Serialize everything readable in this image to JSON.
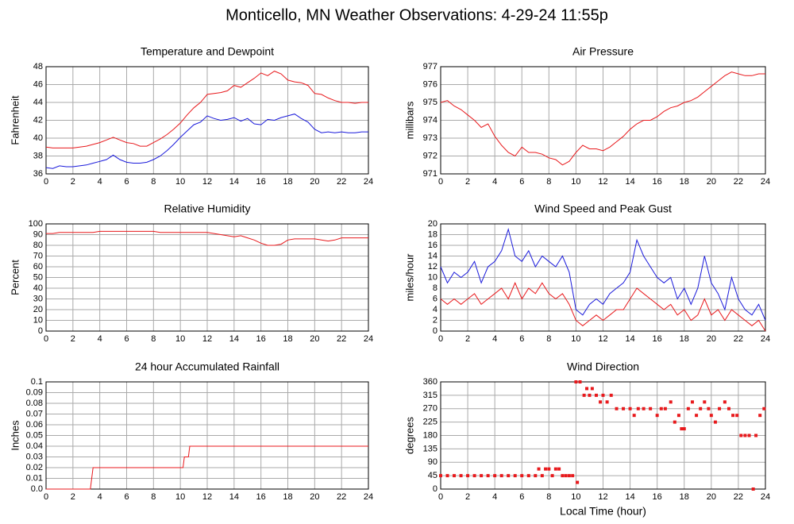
{
  "title": "Monticello, MN Weather Observations: 4-29-24 11:55p",
  "chart_data": [
    {
      "type": "line",
      "title": "Temperature and Dewpoint",
      "ylabel": "Fahrenheit",
      "x": [
        0,
        0.5,
        1,
        1.5,
        2,
        2.5,
        3,
        3.5,
        4,
        4.5,
        5,
        5.5,
        6,
        6.5,
        7,
        7.5,
        8,
        8.5,
        9,
        9.5,
        10,
        10.5,
        11,
        11.5,
        12,
        12.5,
        13,
        13.5,
        14,
        14.5,
        15,
        15.5,
        16,
        16.5,
        17,
        17.5,
        18,
        18.5,
        19,
        19.5,
        20,
        20.5,
        21,
        21.5,
        22,
        22.5,
        23,
        23.5,
        24
      ],
      "series": [
        {
          "color": "#e8191c",
          "values": [
            39,
            38.9,
            38.9,
            38.9,
            38.9,
            39,
            39.1,
            39.3,
            39.5,
            39.8,
            40.1,
            39.8,
            39.5,
            39.4,
            39.1,
            39.1,
            39.5,
            39.9,
            40.4,
            41,
            41.7,
            42.6,
            43.4,
            44,
            44.9,
            45,
            45.1,
            45.3,
            45.9,
            45.7,
            46.2,
            46.7,
            47.3,
            47,
            47.5,
            47.2,
            46.5,
            46.3,
            46.2,
            45.9,
            45,
            44.9,
            44.5,
            44.2,
            44,
            44,
            43.9,
            44,
            44
          ]
        },
        {
          "color": "#1a1adb",
          "values": [
            36.7,
            36.6,
            36.9,
            36.8,
            36.8,
            36.9,
            37,
            37.2,
            37.4,
            37.6,
            38.1,
            37.6,
            37.3,
            37.2,
            37.2,
            37.3,
            37.6,
            38,
            38.6,
            39.3,
            40.1,
            40.8,
            41.5,
            41.8,
            42.5,
            42.2,
            42,
            42.1,
            42.3,
            41.9,
            42.2,
            41.6,
            41.5,
            42.1,
            42,
            42.3,
            42.5,
            42.7,
            42.2,
            41.8,
            41,
            40.6,
            40.7,
            40.6,
            40.7,
            40.6,
            40.6,
            40.7,
            40.7
          ]
        }
      ],
      "xlim": [
        0,
        24
      ],
      "xticks": [
        0,
        2,
        4,
        6,
        8,
        10,
        12,
        14,
        16,
        18,
        20,
        22,
        24
      ],
      "ylim": [
        36,
        48
      ],
      "yticks": [
        36,
        38,
        40,
        42,
        44,
        46,
        48
      ],
      "grid": true
    },
    {
      "type": "line",
      "title": "Air Pressure",
      "ylabel": "millibars",
      "x": [
        0,
        0.5,
        1,
        1.5,
        2,
        2.5,
        3,
        3.5,
        4,
        4.5,
        5,
        5.5,
        6,
        6.5,
        7,
        7.5,
        8,
        8.5,
        9,
        9.5,
        10,
        10.5,
        11,
        11.5,
        12,
        12.5,
        13,
        13.5,
        14,
        14.5,
        15,
        15.5,
        16,
        16.5,
        17,
        17.5,
        18,
        18.5,
        19,
        19.5,
        20,
        20.5,
        21,
        21.5,
        22,
        22.5,
        23,
        23.5,
        24
      ],
      "series": [
        {
          "color": "#e8191c",
          "values": [
            975,
            975.1,
            974.8,
            974.6,
            974.3,
            974,
            973.6,
            973.8,
            973.1,
            972.6,
            972.2,
            972,
            972.5,
            972.2,
            972.2,
            972.1,
            971.9,
            971.8,
            971.5,
            971.7,
            972.2,
            972.6,
            972.4,
            972.4,
            972.3,
            972.5,
            972.8,
            973.1,
            973.5,
            973.8,
            974,
            974,
            974.2,
            974.5,
            974.7,
            974.8,
            975,
            975.1,
            975.3,
            975.6,
            975.9,
            976.2,
            976.5,
            976.7,
            976.6,
            976.5,
            976.5,
            976.6,
            976.6
          ]
        }
      ],
      "xlim": [
        0,
        24
      ],
      "xticks": [
        0,
        2,
        4,
        6,
        8,
        10,
        12,
        14,
        16,
        18,
        20,
        22,
        24
      ],
      "ylim": [
        971,
        977
      ],
      "yticks": [
        971,
        972,
        973,
        974,
        975,
        976,
        977
      ],
      "grid": true
    },
    {
      "type": "line",
      "title": "Relative Humidity",
      "ylabel": "Percent",
      "x": [
        0,
        0.5,
        1,
        1.5,
        2,
        2.5,
        3,
        3.5,
        4,
        4.5,
        5,
        5.5,
        6,
        6.5,
        7,
        7.5,
        8,
        8.5,
        9,
        9.5,
        10,
        10.5,
        11,
        11.5,
        12,
        12.5,
        13,
        13.5,
        14,
        14.5,
        15,
        15.5,
        16,
        16.5,
        17,
        17.5,
        18,
        18.5,
        19,
        19.5,
        20,
        20.5,
        21,
        21.5,
        22,
        22.5,
        23,
        23.5,
        24
      ],
      "series": [
        {
          "color": "#e8191c",
          "values": [
            91,
            91,
            92,
            92,
            92,
            92,
            92,
            92,
            93,
            93,
            93,
            93,
            93,
            93,
            93,
            93,
            93,
            92,
            92,
            92,
            92,
            92,
            92,
            92,
            92,
            91,
            90,
            89,
            88,
            89,
            87,
            85,
            82,
            80,
            80,
            81,
            85,
            86,
            86,
            86,
            86,
            85,
            84,
            85,
            87,
            87,
            87,
            87,
            87
          ]
        }
      ],
      "xlim": [
        0,
        24
      ],
      "xticks": [
        0,
        2,
        4,
        6,
        8,
        10,
        12,
        14,
        16,
        18,
        20,
        22,
        24
      ],
      "ylim": [
        0,
        100
      ],
      "yticks": [
        0,
        10,
        20,
        30,
        40,
        50,
        60,
        70,
        80,
        90,
        100
      ],
      "grid": true
    },
    {
      "type": "line",
      "title": "Wind Speed and Peak Gust",
      "ylabel": "miles/hour",
      "x": [
        0,
        0.5,
        1,
        1.5,
        2,
        2.5,
        3,
        3.5,
        4,
        4.5,
        5,
        5.5,
        6,
        6.5,
        7,
        7.5,
        8,
        8.5,
        9,
        9.5,
        10,
        10.5,
        11,
        11.5,
        12,
        12.5,
        13,
        13.5,
        14,
        14.5,
        15,
        15.5,
        16,
        16.5,
        17,
        17.5,
        18,
        18.5,
        19,
        19.5,
        20,
        20.5,
        21,
        21.5,
        22,
        22.5,
        23,
        23.5,
        24
      ],
      "series": [
        {
          "color": "#1a1adb",
          "values": [
            12,
            9,
            11,
            10,
            11,
            13,
            9,
            12,
            13,
            15,
            19,
            14,
            13,
            15,
            12,
            14,
            13,
            12,
            14,
            11,
            4,
            3,
            5,
            6,
            5,
            7,
            8,
            9,
            11,
            17,
            14,
            12,
            10,
            9,
            10,
            6,
            8,
            5,
            8,
            14,
            9,
            7,
            4,
            10,
            6,
            4,
            3,
            5,
            2
          ]
        },
        {
          "color": "#e8191c",
          "values": [
            6,
            5,
            6,
            5,
            6,
            7,
            5,
            6,
            7,
            8,
            6,
            9,
            6,
            8,
            7,
            9,
            7,
            6,
            7,
            5,
            2,
            1,
            2,
            3,
            2,
            3,
            4,
            4,
            6,
            8,
            7,
            6,
            5,
            4,
            5,
            3,
            4,
            2,
            3,
            6,
            3,
            4,
            2,
            4,
            3,
            2,
            1,
            2,
            0
          ]
        }
      ],
      "xlim": [
        0,
        24
      ],
      "xticks": [
        0,
        2,
        4,
        6,
        8,
        10,
        12,
        14,
        16,
        18,
        20,
        22,
        24
      ],
      "ylim": [
        0,
        20
      ],
      "yticks": [
        0,
        2,
        4,
        6,
        8,
        10,
        12,
        14,
        16,
        18,
        20
      ],
      "grid": true
    },
    {
      "type": "line",
      "title": "24 hour Accumulated Rainfall",
      "ylabel": "Inches",
      "x": [
        0,
        3.3,
        3.5,
        10.2,
        10.3,
        10.6,
        10.7,
        24
      ],
      "series": [
        {
          "color": "#e8191c",
          "values": [
            0,
            0,
            0.02,
            0.02,
            0.03,
            0.03,
            0.04,
            0.04
          ]
        }
      ],
      "xlim": [
        0,
        24
      ],
      "xticks": [
        0,
        2,
        4,
        6,
        8,
        10,
        12,
        14,
        16,
        18,
        20,
        22,
        24
      ],
      "ylim": [
        0,
        0.1
      ],
      "yticks": [
        {
          "value": 0,
          "label": "0.0"
        },
        0.01,
        0.02,
        0.03,
        0.04,
        0.05,
        0.06,
        0.07,
        0.08,
        0.09,
        0.1
      ],
      "grid": true
    },
    {
      "type": "scatter",
      "title": "Wind Direction",
      "ylabel": "degrees",
      "xlabel": "Local Time (hour)",
      "x": [
        0,
        0.5,
        1,
        1.5,
        2,
        2.5,
        3,
        3.5,
        4,
        4.5,
        5,
        5.5,
        6,
        6.5,
        7,
        7.25,
        7.5,
        7.75,
        8,
        8.25,
        8.5,
        8.75,
        9,
        9.25,
        9.5,
        9.75,
        10,
        10.1,
        10.3,
        10.6,
        10.8,
        11,
        11.2,
        11.5,
        11.8,
        12,
        12.3,
        12.6,
        13,
        13.5,
        14,
        14.3,
        14.6,
        15,
        15.5,
        16,
        16.3,
        16.6,
        17,
        17.3,
        17.6,
        17.8,
        18,
        18.3,
        18.6,
        18.9,
        19.2,
        19.5,
        19.8,
        20,
        20.3,
        20.6,
        21,
        21.3,
        21.6,
        21.9,
        22.2,
        22.5,
        22.8,
        23.1,
        23.3,
        23.6,
        23.9
      ],
      "series": [
        {
          "color": "#e8191c",
          "values": [
            45,
            45,
            45,
            45,
            45,
            45,
            45,
            45,
            45,
            45,
            45,
            45,
            45,
            45,
            45,
            67.5,
            45,
            67.5,
            67.5,
            45,
            67.5,
            67.5,
            45,
            45,
            45,
            45,
            360,
            22.5,
            360,
            315,
            337.5,
            315,
            337.5,
            315,
            292.5,
            315,
            292.5,
            315,
            270,
            270,
            270,
            247.5,
            270,
            270,
            270,
            247.5,
            270,
            270,
            292.5,
            225,
            247.5,
            202.5,
            202.5,
            270,
            292.5,
            247.5,
            270,
            292.5,
            270,
            247.5,
            225,
            270,
            292.5,
            270,
            247.5,
            247.5,
            180,
            180,
            180,
            0,
            180,
            247.5,
            270
          ]
        }
      ],
      "xlim": [
        0,
        24
      ],
      "xticks": [
        0,
        2,
        4,
        6,
        8,
        10,
        12,
        14,
        16,
        18,
        20,
        22,
        24
      ],
      "ylim": [
        0,
        360
      ],
      "yticks": [
        0,
        45,
        90,
        135,
        180,
        225,
        270,
        315,
        360
      ],
      "grid": true
    }
  ]
}
